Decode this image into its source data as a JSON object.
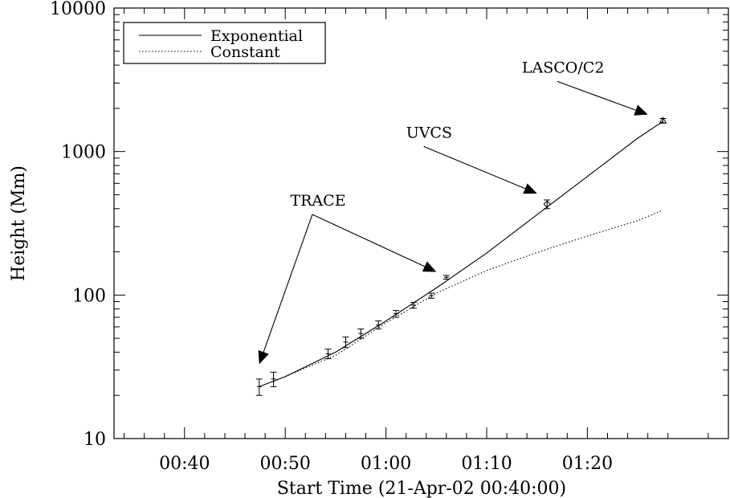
{
  "chart_data": {
    "type": "line",
    "title": "",
    "xlabel": "Start Time (21-Apr-02 00:40:00)",
    "ylabel": "Height (Mm)",
    "x_unit": "time",
    "xlim": [
      "00:33",
      "01:34"
    ],
    "ylim": [
      10,
      10000
    ],
    "y_scale": "log",
    "x_ticks": [
      "00:40",
      "00:50",
      "01:00",
      "01:10",
      "01:20"
    ],
    "y_ticks": [
      "10",
      "100",
      "1000",
      "10000"
    ],
    "grid": false,
    "legend": {
      "position": "top-left",
      "entries": [
        {
          "label": "Exponential",
          "style": "solid"
        },
        {
          "label": "Constant",
          "style": "dotted"
        }
      ]
    },
    "series": [
      {
        "name": "Exponential",
        "style": "solid",
        "points": [
          {
            "x": "00:47:25",
            "y": 23
          },
          {
            "x": "00:50:00",
            "y": 27
          },
          {
            "x": "00:55:00",
            "y": 40
          },
          {
            "x": "01:00:00",
            "y": 66
          },
          {
            "x": "01:05:00",
            "y": 112
          },
          {
            "x": "01:10:00",
            "y": 196
          },
          {
            "x": "01:15:00",
            "y": 363
          },
          {
            "x": "01:20:00",
            "y": 670
          },
          {
            "x": "01:25:00",
            "y": 1240
          },
          {
            "x": "01:27:30",
            "y": 1620
          }
        ]
      },
      {
        "name": "Constant",
        "style": "dotted",
        "points": [
          {
            "x": "00:48:50",
            "y": 25
          },
          {
            "x": "00:55:00",
            "y": 38
          },
          {
            "x": "01:00:00",
            "y": 64
          },
          {
            "x": "01:05:00",
            "y": 103
          },
          {
            "x": "01:10:00",
            "y": 148
          },
          {
            "x": "01:15:00",
            "y": 198
          },
          {
            "x": "01:20:00",
            "y": 258
          },
          {
            "x": "01:25:00",
            "y": 330
          },
          {
            "x": "01:27:30",
            "y": 390
          }
        ]
      },
      {
        "name": "TRACE",
        "marker": "error-bar",
        "points": [
          {
            "x": "00:47:25",
            "y": 23,
            "err": 3
          },
          {
            "x": "00:48:50",
            "y": 26,
            "err": 3
          },
          {
            "x": "00:54:15",
            "y": 39,
            "err": 3
          },
          {
            "x": "00:56:00",
            "y": 47,
            "err": 4
          },
          {
            "x": "00:57:30",
            "y": 54,
            "err": 4
          },
          {
            "x": "00:59:15",
            "y": 62,
            "err": 4
          },
          {
            "x": "01:01:00",
            "y": 74,
            "err": 4
          },
          {
            "x": "01:02:45",
            "y": 85,
            "err": 4
          },
          {
            "x": "01:04:30",
            "y": 99,
            "err": 4
          },
          {
            "x": "01:06:00",
            "y": 133,
            "err": 4
          }
        ]
      },
      {
        "name": "UVCS",
        "marker": "diamond",
        "points": [
          {
            "x": "01:16:00",
            "y": 430,
            "err": 30
          }
        ]
      },
      {
        "name": "LASCO/C2",
        "marker": "triangle",
        "points": [
          {
            "x": "01:27:30",
            "y": 1640,
            "err": 60
          }
        ]
      }
    ],
    "annotations": [
      {
        "text": "TRACE",
        "label_at": {
          "x": "00:50:30",
          "y": 420
        },
        "arrows_to": [
          {
            "x": "00:47:25",
            "y": 33
          },
          {
            "x": "01:05:00",
            "y": 145
          }
        ]
      },
      {
        "text": "UVCS",
        "label_at": {
          "x": "01:02:00",
          "y": 1250
        },
        "arrows_to": [
          {
            "x": "01:15:00",
            "y": 510
          }
        ]
      },
      {
        "text": "LASCO/C2",
        "label_at": {
          "x": "01:13:30",
          "y": 3550
        },
        "arrows_to": [
          {
            "x": "01:26:00",
            "y": 1810
          }
        ]
      }
    ]
  }
}
